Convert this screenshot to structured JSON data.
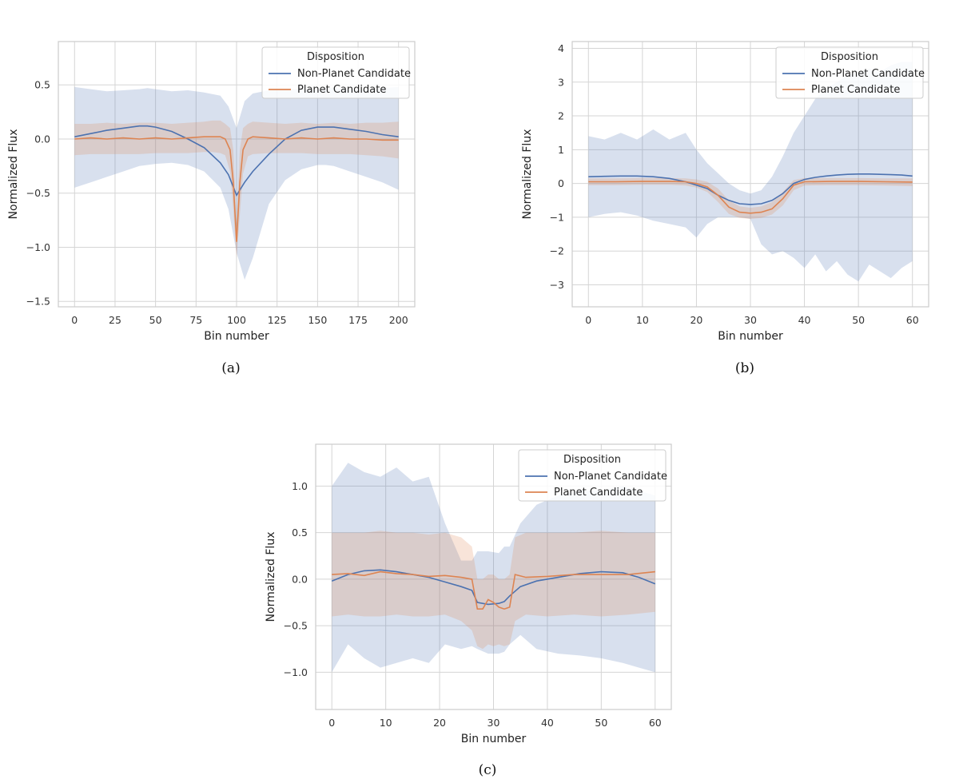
{
  "colors": {
    "non_planet": "#4c72b0",
    "planet": "#dd8452",
    "grid": "#d5d5d5",
    "frame": "#cccccc"
  },
  "chart_data": [
    {
      "type": "line",
      "caption": "(a)",
      "xlabel": "Bin number",
      "ylabel": "Normalized Flux",
      "xlim": [
        -10,
        210
      ],
      "ylim": [
        -1.55,
        0.9
      ],
      "xticks": [
        0,
        25,
        50,
        75,
        100,
        125,
        150,
        175,
        200
      ],
      "yticks": [
        -1.5,
        -1.0,
        -0.5,
        0.0,
        0.5
      ],
      "ytick_labels": [
        "−1.5",
        "−1.0",
        "−0.5",
        "0.0",
        "0.5"
      ],
      "legend": {
        "title": "Disposition",
        "entries": [
          "Non-Planet Candidate",
          "Planet Candidate"
        ],
        "position": "upper right"
      },
      "series": [
        {
          "name": "Non-Planet Candidate",
          "x": [
            0,
            10,
            20,
            30,
            40,
            45,
            50,
            60,
            70,
            80,
            90,
            95,
            100,
            105,
            110,
            120,
            130,
            140,
            150,
            155,
            160,
            170,
            180,
            190,
            200
          ],
          "mean": [
            0.02,
            0.05,
            0.08,
            0.1,
            0.12,
            0.12,
            0.11,
            0.07,
            0.0,
            -0.08,
            -0.22,
            -0.33,
            -0.52,
            -0.4,
            -0.3,
            -0.14,
            0.0,
            0.08,
            0.11,
            0.11,
            0.11,
            0.09,
            0.07,
            0.04,
            0.02
          ],
          "lower": [
            -0.45,
            -0.4,
            -0.35,
            -0.3,
            -0.25,
            -0.24,
            -0.23,
            -0.22,
            -0.24,
            -0.3,
            -0.45,
            -0.65,
            -1.05,
            -1.3,
            -1.1,
            -0.6,
            -0.38,
            -0.28,
            -0.24,
            -0.24,
            -0.25,
            -0.3,
            -0.35,
            -0.4,
            -0.47
          ],
          "upper": [
            0.48,
            0.46,
            0.44,
            0.45,
            0.46,
            0.47,
            0.46,
            0.44,
            0.45,
            0.43,
            0.4,
            0.3,
            0.1,
            0.35,
            0.42,
            0.45,
            0.46,
            0.46,
            0.46,
            0.47,
            0.47,
            0.46,
            0.45,
            0.47,
            0.48
          ]
        },
        {
          "name": "Planet Candidate",
          "x": [
            0,
            10,
            20,
            30,
            40,
            50,
            60,
            70,
            80,
            85,
            90,
            93,
            96,
            98,
            100,
            102,
            104,
            107,
            110,
            120,
            130,
            140,
            150,
            160,
            170,
            180,
            190,
            200
          ],
          "mean": [
            0.0,
            0.01,
            0.0,
            0.01,
            0.0,
            0.01,
            0.0,
            0.01,
            0.02,
            0.02,
            0.02,
            0.0,
            -0.1,
            -0.4,
            -0.95,
            -0.4,
            -0.1,
            0.0,
            0.02,
            0.01,
            0.0,
            0.01,
            0.0,
            0.01,
            0.0,
            0.0,
            -0.01,
            -0.01
          ],
          "lower": [
            -0.15,
            -0.14,
            -0.14,
            -0.14,
            -0.14,
            -0.13,
            -0.13,
            -0.13,
            -0.12,
            -0.12,
            -0.13,
            -0.15,
            -0.3,
            -0.65,
            -1.1,
            -0.7,
            -0.32,
            -0.16,
            -0.14,
            -0.13,
            -0.13,
            -0.13,
            -0.14,
            -0.14,
            -0.14,
            -0.15,
            -0.16,
            -0.18
          ],
          "upper": [
            0.14,
            0.14,
            0.15,
            0.14,
            0.15,
            0.15,
            0.14,
            0.15,
            0.16,
            0.17,
            0.17,
            0.14,
            0.1,
            -0.1,
            -0.75,
            -0.1,
            0.1,
            0.14,
            0.16,
            0.15,
            0.14,
            0.15,
            0.14,
            0.15,
            0.14,
            0.15,
            0.15,
            0.16
          ]
        }
      ]
    },
    {
      "type": "line",
      "caption": "(b)",
      "xlabel": "Bin number",
      "ylabel": "Normalized Flux",
      "xlim": [
        -3,
        63
      ],
      "ylim": [
        -3.65,
        4.2
      ],
      "xticks": [
        0,
        10,
        20,
        30,
        40,
        50,
        60
      ],
      "yticks": [
        -3,
        -2,
        -1,
        0,
        1,
        2,
        3,
        4
      ],
      "ytick_labels": [
        "−3",
        "−2",
        "−1",
        "0",
        "1",
        "2",
        "3",
        "4"
      ],
      "legend": {
        "title": "Disposition",
        "entries": [
          "Non-Planet Candidate",
          "Planet Candidate"
        ],
        "position": "upper right"
      },
      "series": [
        {
          "name": "Non-Planet Candidate",
          "x": [
            0,
            3,
            6,
            9,
            12,
            15,
            18,
            20,
            22,
            24,
            26,
            28,
            30,
            32,
            34,
            36,
            38,
            40,
            42,
            44,
            46,
            48,
            50,
            52,
            54,
            56,
            58,
            60
          ],
          "mean": [
            0.2,
            0.21,
            0.22,
            0.22,
            0.2,
            0.15,
            0.05,
            -0.05,
            -0.15,
            -0.35,
            -0.5,
            -0.6,
            -0.62,
            -0.6,
            -0.5,
            -0.3,
            0.0,
            0.12,
            0.18,
            0.22,
            0.25,
            0.27,
            0.28,
            0.28,
            0.27,
            0.26,
            0.25,
            0.22
          ],
          "lower": [
            -1.0,
            -0.9,
            -0.85,
            -0.95,
            -1.1,
            -1.2,
            -1.3,
            -1.6,
            -1.2,
            -1.0,
            -1.0,
            -1.0,
            -1.05,
            -1.8,
            -2.1,
            -2.0,
            -2.2,
            -2.5,
            -2.1,
            -2.6,
            -2.3,
            -2.7,
            -2.9,
            -2.4,
            -2.6,
            -2.8,
            -2.5,
            -2.3
          ],
          "upper": [
            1.4,
            1.3,
            1.5,
            1.3,
            1.6,
            1.3,
            1.5,
            1.0,
            0.6,
            0.3,
            0.0,
            -0.2,
            -0.3,
            -0.2,
            0.2,
            0.8,
            1.5,
            2.0,
            2.5,
            2.8,
            3.0,
            3.2,
            3.3,
            3.4,
            3.3,
            3.5,
            3.6,
            3.6
          ]
        },
        {
          "name": "Planet Candidate",
          "x": [
            0,
            5,
            10,
            15,
            18,
            20,
            22,
            24,
            26,
            28,
            30,
            32,
            34,
            36,
            38,
            40,
            45,
            50,
            55,
            60
          ],
          "mean": [
            0.05,
            0.05,
            0.06,
            0.06,
            0.05,
            0.0,
            -0.1,
            -0.35,
            -0.7,
            -0.85,
            -0.88,
            -0.85,
            -0.75,
            -0.45,
            -0.05,
            0.05,
            0.06,
            0.06,
            0.05,
            0.04
          ],
          "lower": [
            -0.05,
            -0.05,
            -0.04,
            -0.04,
            -0.06,
            -0.12,
            -0.25,
            -0.55,
            -0.9,
            -1.02,
            -1.05,
            -1.02,
            -0.92,
            -0.65,
            -0.2,
            -0.06,
            -0.05,
            -0.05,
            -0.06,
            -0.08
          ],
          "upper": [
            0.15,
            0.15,
            0.16,
            0.16,
            0.15,
            0.12,
            0.05,
            -0.15,
            -0.5,
            -0.68,
            -0.72,
            -0.68,
            -0.55,
            -0.25,
            0.1,
            0.16,
            0.16,
            0.16,
            0.15,
            0.15
          ]
        }
      ]
    },
    {
      "type": "line",
      "caption": "(c)",
      "xlabel": "Bin number",
      "ylabel": "Normalized Flux",
      "xlim": [
        -3,
        63
      ],
      "ylim": [
        -1.4,
        1.45
      ],
      "xticks": [
        0,
        10,
        20,
        30,
        40,
        50,
        60
      ],
      "yticks": [
        -1.0,
        -0.5,
        0.0,
        0.5,
        1.0
      ],
      "ytick_labels": [
        "−1.0",
        "−0.5",
        "0.0",
        "0.5",
        "1.0"
      ],
      "legend": {
        "title": "Disposition",
        "entries": [
          "Non-Planet Candidate",
          "Planet Candidate"
        ],
        "position": "upper right"
      },
      "series": [
        {
          "name": "Non-Planet Candidate",
          "x": [
            0,
            3,
            6,
            9,
            12,
            15,
            18,
            21,
            24,
            26,
            27,
            29,
            31,
            32,
            33,
            35,
            38,
            42,
            46,
            50,
            54,
            57,
            60
          ],
          "mean": [
            -0.02,
            0.05,
            0.09,
            0.1,
            0.08,
            0.05,
            0.02,
            -0.03,
            -0.08,
            -0.12,
            -0.25,
            -0.27,
            -0.26,
            -0.24,
            -0.18,
            -0.08,
            -0.02,
            0.02,
            0.06,
            0.08,
            0.07,
            0.02,
            -0.05
          ],
          "lower": [
            -1.0,
            -0.7,
            -0.85,
            -0.95,
            -0.9,
            -0.85,
            -0.9,
            -0.7,
            -0.75,
            -0.72,
            -0.75,
            -0.8,
            -0.8,
            -0.78,
            -0.7,
            -0.6,
            -0.75,
            -0.8,
            -0.82,
            -0.85,
            -0.9,
            -0.95,
            -1.0
          ],
          "upper": [
            1.0,
            1.25,
            1.15,
            1.1,
            1.2,
            1.05,
            1.1,
            0.6,
            0.2,
            0.2,
            0.3,
            0.3,
            0.28,
            0.35,
            0.35,
            0.6,
            0.8,
            0.9,
            0.95,
            0.95,
            1.0,
            0.95,
            0.9
          ]
        },
        {
          "name": "Planet Candidate",
          "x": [
            0,
            3,
            6,
            9,
            12,
            15,
            18,
            21,
            24,
            26,
            27,
            28,
            29,
            30,
            31,
            32,
            33,
            34,
            36,
            40,
            45,
            50,
            55,
            60
          ],
          "mean": [
            0.05,
            0.06,
            0.04,
            0.08,
            0.06,
            0.05,
            0.03,
            0.04,
            0.02,
            0.0,
            -0.32,
            -0.32,
            -0.22,
            -0.25,
            -0.3,
            -0.32,
            -0.3,
            0.05,
            0.02,
            0.03,
            0.05,
            0.05,
            0.05,
            0.08
          ],
          "lower": [
            -0.4,
            -0.38,
            -0.4,
            -0.4,
            -0.38,
            -0.4,
            -0.4,
            -0.38,
            -0.45,
            -0.55,
            -0.72,
            -0.75,
            -0.7,
            -0.72,
            -0.7,
            -0.72,
            -0.7,
            -0.45,
            -0.38,
            -0.4,
            -0.38,
            -0.4,
            -0.38,
            -0.35
          ],
          "upper": [
            0.5,
            0.5,
            0.5,
            0.52,
            0.5,
            0.5,
            0.48,
            0.5,
            0.45,
            0.35,
            0.0,
            0.0,
            0.05,
            0.05,
            0.0,
            0.0,
            0.05,
            0.45,
            0.5,
            0.5,
            0.5,
            0.52,
            0.5,
            0.5
          ]
        }
      ]
    }
  ]
}
